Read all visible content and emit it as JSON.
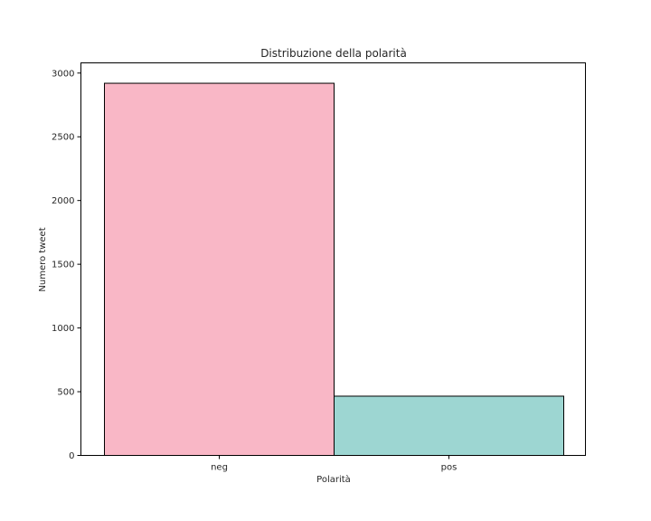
{
  "chart_data": {
    "type": "bar",
    "title": "Distribuzione della polarità",
    "xlabel": "Polarità",
    "ylabel": "Numero tweet",
    "categories": [
      "neg",
      "pos"
    ],
    "values": [
      2920,
      465
    ],
    "colors": [
      "#f9b7c6",
      "#9dd6d2"
    ],
    "edge_color": "#000000",
    "ylim": [
      0,
      3080
    ],
    "yticks": [
      0,
      500,
      1000,
      1500,
      2000,
      2500,
      3000
    ],
    "ytick_labels": [
      "0",
      "500",
      "1000",
      "1500",
      "2000",
      "2500",
      "3000"
    ],
    "grid": false,
    "legend": false
  }
}
